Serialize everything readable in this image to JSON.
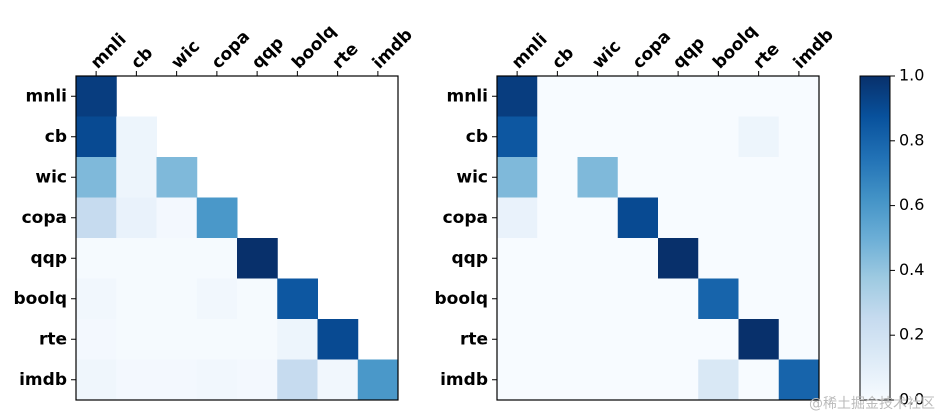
{
  "chart_data": [
    {
      "type": "heatmap",
      "colormap": "Blues",
      "x_categories": [
        "mnli",
        "cb",
        "wic",
        "copa",
        "qqp",
        "boolq",
        "rte",
        "imdb"
      ],
      "y_categories": [
        "mnli",
        "cb",
        "wic",
        "copa",
        "qqp",
        "boolq",
        "rte",
        "imdb"
      ],
      "zlim": [
        0,
        1
      ],
      "values": [
        [
          0.95,
          null,
          null,
          null,
          null,
          null,
          null,
          null
        ],
        [
          0.9,
          0.05,
          null,
          null,
          null,
          null,
          null,
          null
        ],
        [
          0.45,
          0.05,
          0.45,
          null,
          null,
          null,
          null,
          null
        ],
        [
          0.25,
          0.07,
          0.02,
          0.6,
          null,
          null,
          null,
          null
        ],
        [
          0.01,
          0.01,
          0.01,
          0.01,
          1.0,
          null,
          null,
          null
        ],
        [
          0.03,
          0.01,
          0.01,
          0.03,
          0.01,
          0.85,
          null,
          null
        ],
        [
          0.02,
          0.01,
          0.01,
          0.01,
          0.01,
          0.05,
          0.9,
          null
        ],
        [
          0.04,
          0.02,
          0.02,
          0.03,
          0.02,
          0.25,
          0.03,
          0.6
        ]
      ]
    },
    {
      "type": "heatmap",
      "colormap": "Blues",
      "x_categories": [
        "mnli",
        "cb",
        "wic",
        "copa",
        "qqp",
        "boolq",
        "rte",
        "imdb"
      ],
      "y_categories": [
        "mnli",
        "cb",
        "wic",
        "copa",
        "qqp",
        "boolq",
        "rte",
        "imdb"
      ],
      "zlim": [
        0,
        1
      ],
      "values": [
        [
          0.95,
          0,
          0,
          0,
          0,
          0,
          0,
          0
        ],
        [
          0.85,
          0,
          0,
          0,
          0,
          0,
          0.05,
          0
        ],
        [
          0.45,
          0,
          0.45,
          0,
          0,
          0,
          0,
          0
        ],
        [
          0.07,
          0,
          0,
          0.9,
          0,
          0,
          0,
          0
        ],
        [
          0,
          0,
          0,
          0,
          1.0,
          0,
          0,
          0
        ],
        [
          0,
          0,
          0,
          0,
          0,
          0.8,
          0,
          0
        ],
        [
          0,
          0,
          0,
          0,
          0,
          0,
          1.0,
          0
        ],
        [
          0,
          0,
          0,
          0,
          0,
          0.15,
          0,
          0.8
        ]
      ]
    },
    {
      "type": "colorbar",
      "colormap": "Blues",
      "ylim": [
        0,
        1
      ],
      "yticks": [
        {
          "value": 0,
          "label": "0.0"
        },
        0.2,
        0.4,
        0.6,
        0.8,
        {
          "value": 1,
          "label": "1.0"
        }
      ],
      "watermark": "@稀土掘金技术社区"
    }
  ]
}
